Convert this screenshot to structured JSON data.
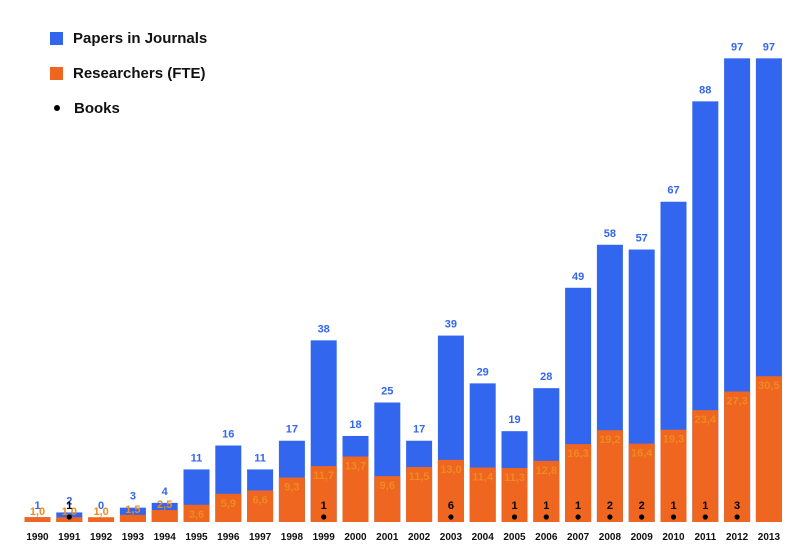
{
  "colors": {
    "papers": "#3366ee",
    "researchers": "#ee6620",
    "papers_label": "#3366ee",
    "researchers_label": "#ee8a20",
    "books": "#000000"
  },
  "legend": [
    {
      "label": "Papers in Journals",
      "icon": "square-swatch",
      "color_key": "papers"
    },
    {
      "label": "Researchers (FTE)",
      "icon": "square-swatch",
      "color_key": "researchers"
    },
    {
      "label": "Books",
      "icon": "dot",
      "color_key": "books"
    }
  ],
  "chart_data": {
    "type": "bar",
    "stacked": false,
    "categories": [
      "1990",
      "1991",
      "1992",
      "1993",
      "1994",
      "1995",
      "1996",
      "1997",
      "1998",
      "1999",
      "2000",
      "2001",
      "2002",
      "2003",
      "2004",
      "2005",
      "2006",
      "2007",
      "2008",
      "2009",
      "2010",
      "2011",
      "2012",
      "2013"
    ],
    "series": [
      {
        "name": "Papers in Journals",
        "values": [
          1,
          2,
          0,
          3,
          4,
          11,
          16,
          11,
          17,
          38,
          18,
          25,
          17,
          39,
          29,
          19,
          28,
          49,
          58,
          57,
          67,
          88,
          97,
          97
        ],
        "labels": [
          "1",
          "2",
          "0",
          "3",
          "4",
          "11",
          "16",
          "11",
          "17",
          "38",
          "18",
          "25",
          "17",
          "39",
          "29",
          "19",
          "28",
          "49",
          "58",
          "57",
          "67",
          "88",
          "97",
          "97"
        ]
      },
      {
        "name": "Researchers (FTE)",
        "values": [
          1.0,
          1.0,
          1.0,
          1.5,
          2.5,
          3.6,
          5.9,
          6.6,
          9.3,
          11.7,
          13.7,
          9.6,
          11.5,
          13.0,
          11.4,
          11.3,
          12.8,
          16.3,
          19.2,
          16.4,
          19.3,
          23.4,
          27.3,
          30.5
        ],
        "labels": [
          "1,0",
          "1,0",
          "1,0",
          "1,5",
          "2,5",
          "3,6",
          "5,9",
          "6,6",
          "9,3",
          "11,7",
          "13,7",
          "9,6",
          "11,5",
          "13,0",
          "11,4",
          "11,3",
          "12,8",
          "16,3",
          "19,2",
          "16,4",
          "19,3",
          "23,4",
          "27,3",
          "30,5"
        ]
      },
      {
        "name": "Books",
        "values": [
          null,
          1,
          null,
          null,
          null,
          null,
          null,
          null,
          null,
          1,
          null,
          null,
          null,
          6,
          null,
          1,
          1,
          1,
          2,
          2,
          1,
          1,
          3,
          null
        ],
        "labels": [
          "",
          "1",
          "",
          "",
          "",
          "",
          "",
          "",
          "",
          "1",
          "",
          "",
          "",
          "6",
          "",
          "1",
          "1",
          "1",
          "2",
          "2",
          "1",
          "1",
          "3",
          ""
        ]
      }
    ],
    "ylim": [
      0,
      97
    ],
    "grid": false,
    "legend_position": "top-left",
    "title": "",
    "xlabel": "",
    "ylabel": ""
  }
}
